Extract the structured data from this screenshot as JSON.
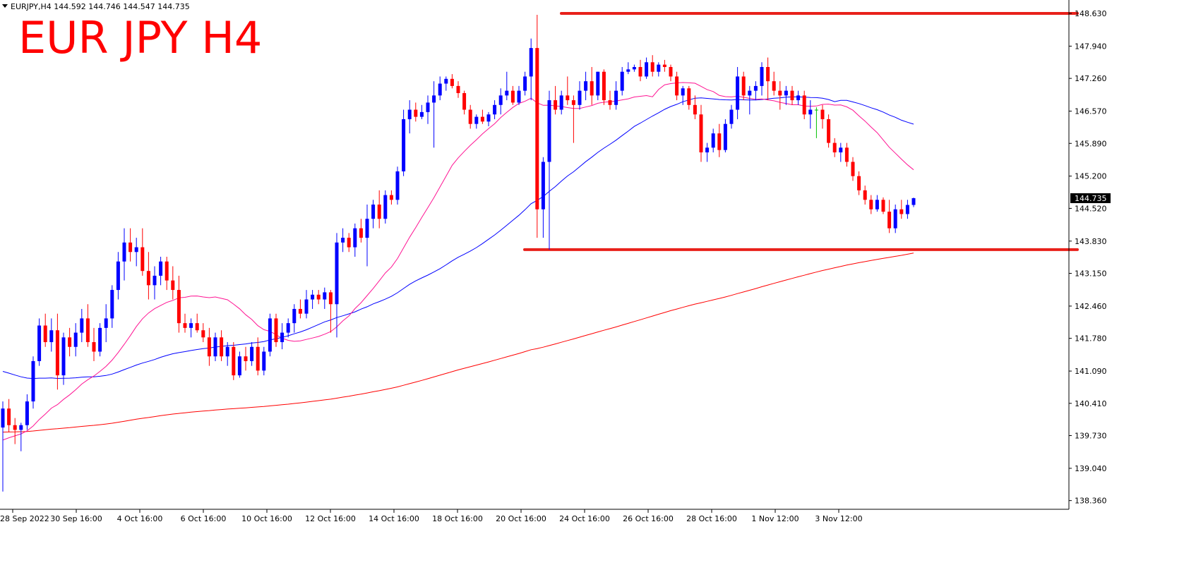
{
  "header": {
    "symbol_line": "EURJPY,H4  144.592 144.746 144.547 144.735",
    "big_title": "EUR JPY H4"
  },
  "colors": {
    "bull_candle": "#0000FF",
    "bear_candle": "#FF0000",
    "doji_candle": "#00C000",
    "ma_fast": "#FF1493",
    "ma_mid": "#0000FF",
    "ma_slow": "#FF0000",
    "level_line": "#E8201A",
    "title": "#FF0000",
    "axis": "#000000",
    "price_tag_bg": "#000000",
    "price_tag_fg": "#FFFFFF"
  },
  "chart_data": {
    "type": "candlestick",
    "symbol": "EURJPY",
    "timeframe": "H4",
    "title": "EUR JPY H4",
    "ylim": [
      138.1,
      148.8
    ],
    "y_ticks": [
      "148.630",
      "147.940",
      "147.260",
      "146.570",
      "145.890",
      "145.200",
      "144.520",
      "143.830",
      "143.150",
      "142.460",
      "141.780",
      "141.090",
      "140.410",
      "139.730",
      "139.040",
      "138.360"
    ],
    "x_ticks": [
      "28 Sep 2022",
      "30 Sep 16:00",
      "4 Oct 16:00",
      "6 Oct 16:00",
      "10 Oct 16:00",
      "12 Oct 16:00",
      "14 Oct 16:00",
      "18 Oct 16:00",
      "20 Oct 16:00",
      "24 Oct 16:00",
      "26 Oct 16:00",
      "28 Oct 16:00",
      "1 Nov 12:00",
      "3 Nov 12:00"
    ],
    "current_price": "144.735",
    "last_ohlc": {
      "open": 144.592,
      "high": 144.746,
      "low": 144.547,
      "close": 144.735
    },
    "levels": [
      {
        "name": "resistance",
        "value": 148.63
      },
      {
        "name": "support",
        "value": 143.65
      }
    ],
    "candles": [
      {
        "o": 139.9,
        "h": 140.45,
        "l": 138.55,
        "c": 140.3
      },
      {
        "o": 140.3,
        "h": 140.5,
        "l": 139.8,
        "c": 139.95
      },
      {
        "o": 139.95,
        "h": 140.1,
        "l": 139.55,
        "c": 139.85
      },
      {
        "o": 139.85,
        "h": 140.0,
        "l": 139.4,
        "c": 139.95
      },
      {
        "o": 139.95,
        "h": 140.6,
        "l": 139.85,
        "c": 140.45
      },
      {
        "o": 140.45,
        "h": 141.4,
        "l": 140.3,
        "c": 141.3
      },
      {
        "o": 141.3,
        "h": 142.2,
        "l": 141.2,
        "c": 142.05
      },
      {
        "o": 142.05,
        "h": 142.3,
        "l": 141.6,
        "c": 141.7
      },
      {
        "o": 141.7,
        "h": 142.2,
        "l": 141.5,
        "c": 141.95
      },
      {
        "o": 141.95,
        "h": 142.3,
        "l": 140.7,
        "c": 141.0
      },
      {
        "o": 141.0,
        "h": 141.9,
        "l": 140.8,
        "c": 141.8
      },
      {
        "o": 141.8,
        "h": 142.0,
        "l": 141.4,
        "c": 141.6
      },
      {
        "o": 141.6,
        "h": 142.1,
        "l": 141.4,
        "c": 141.9
      },
      {
        "o": 141.9,
        "h": 142.4,
        "l": 141.7,
        "c": 142.2
      },
      {
        "o": 142.2,
        "h": 142.5,
        "l": 141.6,
        "c": 141.7
      },
      {
        "o": 141.7,
        "h": 142.0,
        "l": 141.3,
        "c": 141.5
      },
      {
        "o": 141.5,
        "h": 142.1,
        "l": 141.4,
        "c": 142.0
      },
      {
        "o": 142.0,
        "h": 142.5,
        "l": 141.7,
        "c": 142.2
      },
      {
        "o": 142.2,
        "h": 142.9,
        "l": 142.0,
        "c": 142.8
      },
      {
        "o": 142.8,
        "h": 143.6,
        "l": 142.6,
        "c": 143.4
      },
      {
        "o": 143.4,
        "h": 144.1,
        "l": 143.0,
        "c": 143.8
      },
      {
        "o": 143.8,
        "h": 144.1,
        "l": 143.4,
        "c": 143.6
      },
      {
        "o": 143.6,
        "h": 143.9,
        "l": 143.3,
        "c": 143.7
      },
      {
        "o": 143.7,
        "h": 144.1,
        "l": 143.1,
        "c": 143.2
      },
      {
        "o": 143.2,
        "h": 143.6,
        "l": 142.6,
        "c": 142.9
      },
      {
        "o": 142.9,
        "h": 143.3,
        "l": 142.6,
        "c": 143.1
      },
      {
        "o": 143.1,
        "h": 143.5,
        "l": 142.9,
        "c": 143.4
      },
      {
        "o": 143.4,
        "h": 143.5,
        "l": 142.8,
        "c": 143.0
      },
      {
        "o": 143.0,
        "h": 143.3,
        "l": 142.6,
        "c": 142.8
      },
      {
        "o": 142.8,
        "h": 143.1,
        "l": 141.9,
        "c": 142.1
      },
      {
        "o": 142.1,
        "h": 142.3,
        "l": 141.9,
        "c": 142.0
      },
      {
        "o": 142.0,
        "h": 142.2,
        "l": 141.8,
        "c": 142.1
      },
      {
        "o": 142.1,
        "h": 142.3,
        "l": 141.9,
        "c": 141.95
      },
      {
        "o": 141.95,
        "h": 142.1,
        "l": 141.7,
        "c": 141.8
      },
      {
        "o": 141.8,
        "h": 142.0,
        "l": 141.2,
        "c": 141.4
      },
      {
        "o": 141.4,
        "h": 141.9,
        "l": 141.3,
        "c": 141.8
      },
      {
        "o": 141.8,
        "h": 141.95,
        "l": 141.3,
        "c": 141.4
      },
      {
        "o": 141.4,
        "h": 141.7,
        "l": 141.2,
        "c": 141.6
      },
      {
        "o": 141.6,
        "h": 141.7,
        "l": 140.9,
        "c": 141.0
      },
      {
        "o": 141.0,
        "h": 141.5,
        "l": 140.95,
        "c": 141.4
      },
      {
        "o": 141.4,
        "h": 141.6,
        "l": 141.1,
        "c": 141.3
      },
      {
        "o": 141.3,
        "h": 141.7,
        "l": 141.2,
        "c": 141.6
      },
      {
        "o": 141.6,
        "h": 141.8,
        "l": 141.0,
        "c": 141.1
      },
      {
        "o": 141.1,
        "h": 141.6,
        "l": 141.0,
        "c": 141.5
      },
      {
        "o": 141.5,
        "h": 142.3,
        "l": 141.4,
        "c": 142.2
      },
      {
        "o": 142.2,
        "h": 142.3,
        "l": 141.6,
        "c": 141.7
      },
      {
        "o": 141.7,
        "h": 142.1,
        "l": 141.55,
        "c": 141.9
      },
      {
        "o": 141.9,
        "h": 142.2,
        "l": 141.8,
        "c": 142.1
      },
      {
        "o": 142.1,
        "h": 142.5,
        "l": 141.9,
        "c": 142.4
      },
      {
        "o": 142.4,
        "h": 142.6,
        "l": 142.2,
        "c": 142.3
      },
      {
        "o": 142.3,
        "h": 142.8,
        "l": 142.2,
        "c": 142.6
      },
      {
        "o": 142.6,
        "h": 142.8,
        "l": 142.4,
        "c": 142.7
      },
      {
        "o": 142.7,
        "h": 142.8,
        "l": 142.5,
        "c": 142.6
      },
      {
        "o": 142.6,
        "h": 142.85,
        "l": 142.4,
        "c": 142.75
      },
      {
        "o": 142.75,
        "h": 142.8,
        "l": 141.9,
        "c": 142.5
      },
      {
        "o": 142.5,
        "h": 144.0,
        "l": 141.8,
        "c": 143.8
      },
      {
        "o": 143.8,
        "h": 144.1,
        "l": 143.6,
        "c": 143.9
      },
      {
        "o": 143.9,
        "h": 144.0,
        "l": 143.6,
        "c": 143.7
      },
      {
        "o": 143.7,
        "h": 144.2,
        "l": 143.5,
        "c": 144.1
      },
      {
        "o": 144.1,
        "h": 144.3,
        "l": 143.8,
        "c": 143.9
      },
      {
        "o": 143.9,
        "h": 144.6,
        "l": 143.3,
        "c": 144.3
      },
      {
        "o": 144.3,
        "h": 144.7,
        "l": 144.1,
        "c": 144.6
      },
      {
        "o": 144.6,
        "h": 144.9,
        "l": 144.1,
        "c": 144.3
      },
      {
        "o": 144.3,
        "h": 144.9,
        "l": 144.2,
        "c": 144.8
      },
      {
        "o": 144.8,
        "h": 144.9,
        "l": 144.6,
        "c": 144.7
      },
      {
        "o": 144.7,
        "h": 145.4,
        "l": 144.6,
        "c": 145.3
      },
      {
        "o": 145.3,
        "h": 146.6,
        "l": 145.2,
        "c": 146.4
      },
      {
        "o": 146.4,
        "h": 146.8,
        "l": 146.1,
        "c": 146.6
      },
      {
        "o": 146.6,
        "h": 146.75,
        "l": 146.35,
        "c": 146.45
      },
      {
        "o": 146.45,
        "h": 146.7,
        "l": 146.4,
        "c": 146.55
      },
      {
        "o": 146.55,
        "h": 146.9,
        "l": 146.3,
        "c": 146.75
      },
      {
        "o": 146.75,
        "h": 147.2,
        "l": 145.8,
        "c": 146.9
      },
      {
        "o": 146.9,
        "h": 147.3,
        "l": 146.8,
        "c": 147.15
      },
      {
        "o": 147.15,
        "h": 147.3,
        "l": 147.0,
        "c": 147.25
      },
      {
        "o": 147.25,
        "h": 147.35,
        "l": 147.05,
        "c": 147.1
      },
      {
        "o": 147.1,
        "h": 147.2,
        "l": 146.85,
        "c": 146.95
      },
      {
        "o": 146.95,
        "h": 147.0,
        "l": 146.5,
        "c": 146.6
      },
      {
        "o": 146.6,
        "h": 146.7,
        "l": 146.2,
        "c": 146.3
      },
      {
        "o": 146.3,
        "h": 146.5,
        "l": 146.2,
        "c": 146.45
      },
      {
        "o": 146.45,
        "h": 146.6,
        "l": 146.3,
        "c": 146.35
      },
      {
        "o": 146.35,
        "h": 146.55,
        "l": 146.25,
        "c": 146.5
      },
      {
        "o": 146.5,
        "h": 146.8,
        "l": 146.4,
        "c": 146.7
      },
      {
        "o": 146.7,
        "h": 147.05,
        "l": 146.5,
        "c": 146.9
      },
      {
        "o": 146.9,
        "h": 147.4,
        "l": 146.8,
        "c": 147.0
      },
      {
        "o": 147.0,
        "h": 147.1,
        "l": 146.7,
        "c": 146.75
      },
      {
        "o": 146.75,
        "h": 147.1,
        "l": 146.7,
        "c": 147.0
      },
      {
        "o": 147.0,
        "h": 147.4,
        "l": 146.9,
        "c": 147.3
      },
      {
        "o": 147.3,
        "h": 148.1,
        "l": 146.8,
        "c": 147.9
      },
      {
        "o": 147.9,
        "h": 148.6,
        "l": 143.9,
        "c": 144.5
      },
      {
        "o": 144.5,
        "h": 145.6,
        "l": 143.9,
        "c": 145.5
      },
      {
        "o": 145.5,
        "h": 147.0,
        "l": 143.65,
        "c": 146.8
      },
      {
        "o": 146.8,
        "h": 147.1,
        "l": 146.5,
        "c": 146.6
      },
      {
        "o": 146.6,
        "h": 147.0,
        "l": 146.5,
        "c": 146.9
      },
      {
        "o": 146.9,
        "h": 147.3,
        "l": 146.7,
        "c": 146.8
      },
      {
        "o": 146.8,
        "h": 146.9,
        "l": 145.9,
        "c": 146.7
      },
      {
        "o": 146.7,
        "h": 147.2,
        "l": 146.6,
        "c": 147.0
      },
      {
        "o": 147.0,
        "h": 147.4,
        "l": 146.8,
        "c": 147.2
      },
      {
        "o": 147.2,
        "h": 147.5,
        "l": 146.7,
        "c": 146.9
      },
      {
        "o": 146.9,
        "h": 147.4,
        "l": 146.8,
        "c": 147.4
      },
      {
        "o": 147.4,
        "h": 147.45,
        "l": 146.7,
        "c": 146.8
      },
      {
        "o": 146.8,
        "h": 147.0,
        "l": 146.6,
        "c": 146.7
      },
      {
        "o": 146.7,
        "h": 147.2,
        "l": 146.6,
        "c": 147.0
      },
      {
        "o": 147.0,
        "h": 147.5,
        "l": 146.9,
        "c": 147.4
      },
      {
        "o": 147.4,
        "h": 147.6,
        "l": 147.35,
        "c": 147.45
      },
      {
        "o": 147.45,
        "h": 147.55,
        "l": 147.4,
        "c": 147.5
      },
      {
        "o": 147.5,
        "h": 147.65,
        "l": 147.2,
        "c": 147.3
      },
      {
        "o": 147.3,
        "h": 147.7,
        "l": 147.25,
        "c": 147.6
      },
      {
        "o": 147.6,
        "h": 147.75,
        "l": 147.3,
        "c": 147.4
      },
      {
        "o": 147.4,
        "h": 147.6,
        "l": 147.3,
        "c": 147.55
      },
      {
        "o": 147.55,
        "h": 147.65,
        "l": 147.4,
        "c": 147.5
      },
      {
        "o": 147.5,
        "h": 147.55,
        "l": 147.2,
        "c": 147.3
      },
      {
        "o": 147.3,
        "h": 147.4,
        "l": 146.8,
        "c": 146.9
      },
      {
        "o": 146.9,
        "h": 147.1,
        "l": 146.7,
        "c": 147.05
      },
      {
        "o": 147.05,
        "h": 147.1,
        "l": 146.6,
        "c": 146.7
      },
      {
        "o": 146.7,
        "h": 146.9,
        "l": 146.4,
        "c": 146.5
      },
      {
        "o": 146.5,
        "h": 146.7,
        "l": 145.5,
        "c": 145.7
      },
      {
        "o": 145.7,
        "h": 145.9,
        "l": 145.5,
        "c": 145.8
      },
      {
        "o": 145.8,
        "h": 146.2,
        "l": 145.7,
        "c": 146.1
      },
      {
        "o": 146.1,
        "h": 146.3,
        "l": 145.6,
        "c": 145.75
      },
      {
        "o": 145.75,
        "h": 146.4,
        "l": 145.7,
        "c": 146.3
      },
      {
        "o": 146.3,
        "h": 146.7,
        "l": 146.2,
        "c": 146.6
      },
      {
        "o": 146.6,
        "h": 147.5,
        "l": 146.4,
        "c": 147.3
      },
      {
        "o": 147.3,
        "h": 147.4,
        "l": 146.8,
        "c": 146.9
      },
      {
        "o": 146.9,
        "h": 147.1,
        "l": 146.5,
        "c": 147.0
      },
      {
        "o": 147.0,
        "h": 147.2,
        "l": 146.8,
        "c": 147.1
      },
      {
        "o": 147.1,
        "h": 147.6,
        "l": 146.9,
        "c": 147.5
      },
      {
        "o": 147.5,
        "h": 147.7,
        "l": 146.8,
        "c": 147.2
      },
      {
        "o": 147.2,
        "h": 147.4,
        "l": 146.9,
        "c": 147.0
      },
      {
        "o": 147.0,
        "h": 147.2,
        "l": 146.6,
        "c": 146.9
      },
      {
        "o": 146.9,
        "h": 147.1,
        "l": 146.7,
        "c": 147.0
      },
      {
        "o": 147.0,
        "h": 147.1,
        "l": 146.7,
        "c": 146.8
      },
      {
        "o": 146.8,
        "h": 147.0,
        "l": 146.7,
        "c": 146.9
      },
      {
        "o": 146.9,
        "h": 147.0,
        "l": 146.4,
        "c": 146.5
      },
      {
        "o": 146.5,
        "h": 146.8,
        "l": 146.2,
        "c": 146.6
      },
      {
        "o": 146.6,
        "h": 146.65,
        "l": 146.0,
        "c": 146.6
      },
      {
        "o": 146.6,
        "h": 146.7,
        "l": 146.2,
        "c": 146.4
      },
      {
        "o": 146.4,
        "h": 146.5,
        "l": 145.8,
        "c": 145.9
      },
      {
        "o": 145.9,
        "h": 146.0,
        "l": 145.6,
        "c": 145.7
      },
      {
        "o": 145.7,
        "h": 145.9,
        "l": 145.5,
        "c": 145.8
      },
      {
        "o": 145.8,
        "h": 145.9,
        "l": 145.4,
        "c": 145.5
      },
      {
        "o": 145.5,
        "h": 145.6,
        "l": 145.1,
        "c": 145.2
      },
      {
        "o": 145.2,
        "h": 145.3,
        "l": 144.8,
        "c": 144.9
      },
      {
        "o": 144.9,
        "h": 145.0,
        "l": 144.6,
        "c": 144.7
      },
      {
        "o": 144.7,
        "h": 144.8,
        "l": 144.4,
        "c": 144.5
      },
      {
        "o": 144.5,
        "h": 144.8,
        "l": 144.45,
        "c": 144.7
      },
      {
        "o": 144.7,
        "h": 144.75,
        "l": 144.4,
        "c": 144.45
      },
      {
        "o": 144.45,
        "h": 144.7,
        "l": 144.0,
        "c": 144.1
      },
      {
        "o": 144.1,
        "h": 144.6,
        "l": 144.0,
        "c": 144.5
      },
      {
        "o": 144.5,
        "h": 144.7,
        "l": 144.3,
        "c": 144.4
      },
      {
        "o": 144.4,
        "h": 144.7,
        "l": 144.3,
        "c": 144.592
      },
      {
        "o": 144.592,
        "h": 144.746,
        "l": 144.547,
        "c": 144.735
      }
    ]
  }
}
